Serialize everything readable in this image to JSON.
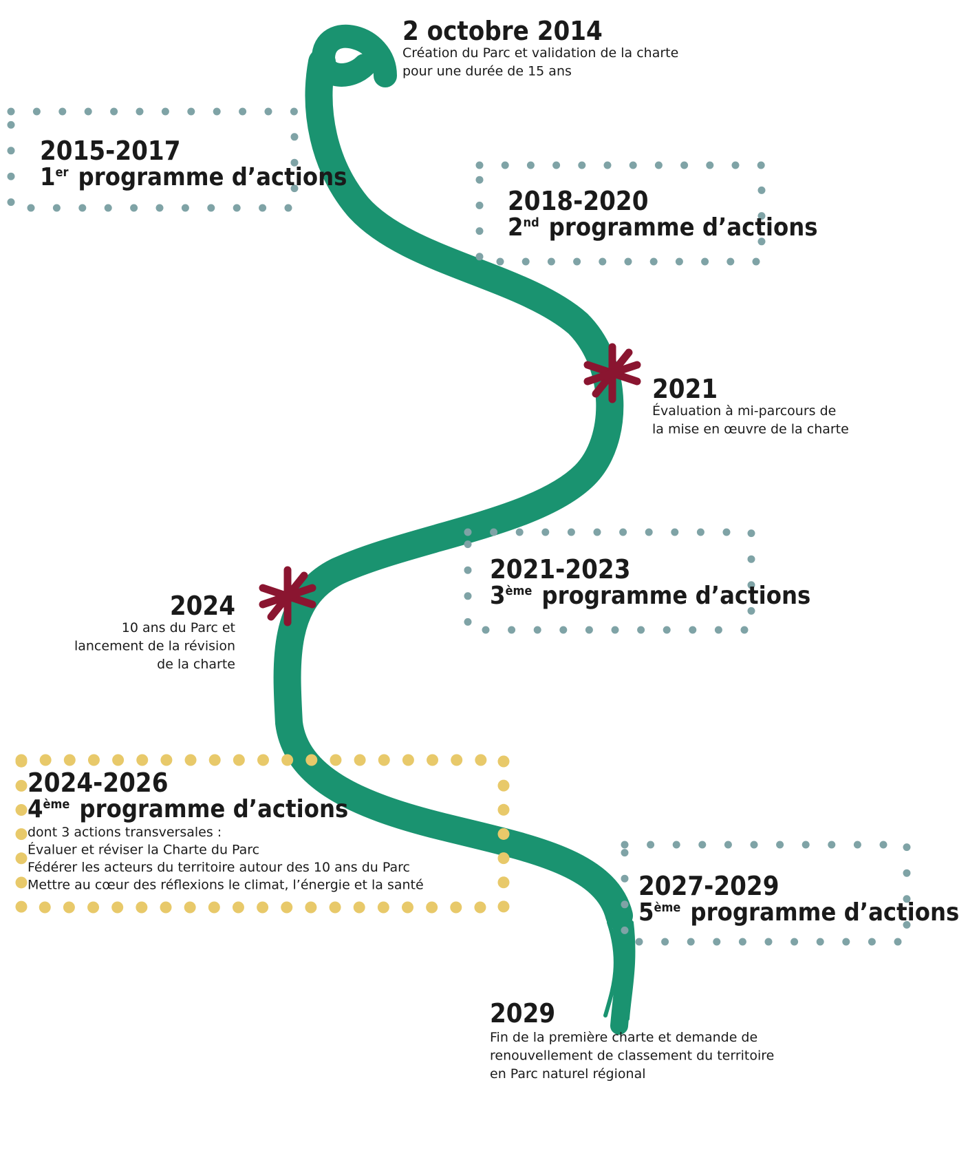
{
  "events": [
    {
      "title": "2 octobre 2014",
      "lines": [
        "Création du Parc  et validation de la charte",
        "pour une durée de 15 ans"
      ]
    },
    {
      "title": "2021",
      "lines": [
        "Évaluation à mi-parcours de",
        "la mise en œuvre de la charte"
      ]
    },
    {
      "title": "2024",
      "lines": [
        "10 ans du Parc et",
        "lancement de la révision",
        "de la charte"
      ]
    },
    {
      "title": "2029",
      "lines": [
        "Fin de la première charte et demande de",
        "renouvellement de classement du territoire",
        "en Parc naturel régional"
      ]
    }
  ],
  "programmes": [
    {
      "years": "2015-2017",
      "number": "1",
      "suffix": "er",
      "label": "programme d’actions"
    },
    {
      "years": "2018-2020",
      "number": "2",
      "suffix": "nd",
      "label": "programme d’actions"
    },
    {
      "years": "2021-2023",
      "number": "3",
      "suffix": "ème",
      "label": "programme d’actions"
    },
    {
      "years": "2024-2026",
      "number": "4",
      "suffix": "ème",
      "label": "programme d’actions",
      "details": [
        "dont 3 actions transversales :",
        "Évaluer et réviser la Charte du Parc",
        "Fédérer les acteurs du territoire autour des 10 ans du Parc",
        "Mettre au cœur des réflexions le climat, l’énergie et la santé"
      ]
    },
    {
      "years": "2027-2029",
      "number": "5",
      "suffix": "ème",
      "label": "programme d’actions"
    }
  ]
}
